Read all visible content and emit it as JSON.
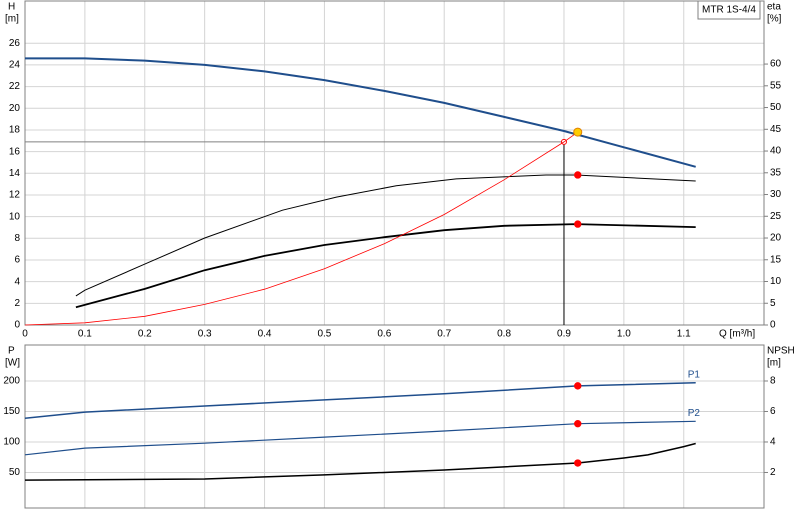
{
  "chart_data": [
    {
      "type": "line",
      "title": "MTR 1S-4/4",
      "xlabel": "Q [m³/h]",
      "ylabel": "H",
      "yunit": "[m]",
      "y2label": "eta",
      "y2unit": "[%]",
      "xlim": [
        0,
        1.234
      ],
      "xticks": [
        0,
        0.1,
        0.2,
        0.3,
        0.4,
        0.5,
        0.6,
        0.7,
        0.8,
        0.9,
        {
          "value": 1,
          "label": "1.0"
        },
        1.1
      ],
      "ylim": [
        0,
        29.9
      ],
      "yticks": [
        0,
        2,
        4,
        6,
        8,
        10,
        12,
        14,
        16,
        18,
        20,
        22,
        24,
        26
      ],
      "y2lim": [
        0,
        74.5
      ],
      "y2ticks": [
        0,
        5,
        10,
        15,
        20,
        25,
        30,
        35,
        40,
        45,
        50,
        55,
        60
      ],
      "grid": true,
      "series": [
        {
          "color": "#1f4e8c",
          "width": 2,
          "x": [
            0,
            0.1,
            0.2,
            0.3,
            0.4,
            0.5,
            0.6,
            0.7,
            0.8,
            0.9,
            1.0,
            1.12
          ],
          "values": [
            24.6,
            24.6,
            24.4,
            24.0,
            23.4,
            22.6,
            21.6,
            20.5,
            19.2,
            17.9,
            16.4,
            14.6
          ]
        },
        {
          "color": "#000000",
          "width": 1,
          "axis": "y2",
          "x": [
            0.085,
            0.1,
            0.2,
            0.3,
            0.43,
            0.52,
            0.62,
            0.72,
            0.87,
            0.92,
            1.12
          ],
          "values": [
            6.7,
            8,
            14,
            20,
            26.4,
            29.4,
            32,
            33.6,
            34.5,
            34.5,
            33.1
          ]
        },
        {
          "color": "#000000",
          "width": 1.8,
          "axis": "y2",
          "x": [
            0.085,
            0.2,
            0.3,
            0.4,
            0.5,
            0.6,
            0.7,
            0.8,
            0.92,
            1.12
          ],
          "values": [
            4.1,
            8.3,
            12.6,
            15.9,
            18.4,
            20.2,
            21.8,
            22.8,
            23.2,
            22.5
          ]
        },
        {
          "color": "#ff0000",
          "width": 0.8,
          "x": [
            0,
            0.1,
            0.2,
            0.3,
            0.4,
            0.5,
            0.6,
            0.7,
            0.8,
            0.9,
            0.923
          ],
          "values": [
            0,
            0.2,
            0.8,
            1.9,
            3.3,
            5.2,
            7.5,
            10.2,
            13.4,
            16.9,
            17.8
          ]
        }
      ],
      "duty_point": {
        "x": 0.9,
        "y": 16.9
      },
      "markers": [
        {
          "x": 0.923,
          "y": 17.8,
          "color": "#ffcc00"
        },
        {
          "x": 0.923,
          "y": 34.5,
          "axis": "y2",
          "color": "#ff0000"
        },
        {
          "x": 0.923,
          "y": 23.2,
          "axis": "y2",
          "color": "#ff0000"
        }
      ]
    },
    {
      "type": "line",
      "ylabel": "P",
      "yunit": "[W]",
      "y2label": "NPSH",
      "y2unit": "[m]",
      "xlim": [
        0,
        1.234
      ],
      "ylim": [
        -8.2,
        259
      ],
      "yticks": [
        50,
        100,
        150,
        200
      ],
      "y2lim": [
        -0.33,
        10.36
      ],
      "y2ticks": [
        2,
        4,
        6,
        8
      ],
      "grid": true,
      "series": [
        {
          "name": "P1",
          "color": "#1f4e8c",
          "width": 1.5,
          "x": [
            0,
            0.1,
            0.3,
            0.5,
            0.7,
            0.923,
            1.12
          ],
          "values": [
            139,
            149,
            159,
            169,
            179,
            192,
            197
          ]
        },
        {
          "name": "P2",
          "color": "#1f4e8c",
          "width": 1.2,
          "x": [
            0,
            0.1,
            0.3,
            0.5,
            0.7,
            0.923,
            1.12
          ],
          "values": [
            79,
            90,
            98,
            108,
            118,
            130,
            134
          ]
        },
        {
          "color": "#000000",
          "width": 1.5,
          "axis": "y2",
          "x": [
            0,
            0.3,
            0.5,
            0.7,
            0.923,
            1.0,
            1.04,
            1.1,
            1.12
          ],
          "values": [
            1.5,
            1.57,
            1.84,
            2.16,
            2.62,
            2.95,
            3.15,
            3.7,
            3.9
          ]
        }
      ],
      "markers": [
        {
          "x": 0.923,
          "y": 192,
          "color": "#ff0000"
        },
        {
          "x": 0.923,
          "y": 130,
          "color": "#ff0000"
        },
        {
          "x": 0.923,
          "y": 2.62,
          "axis": "y2",
          "color": "#ff0000"
        }
      ]
    }
  ]
}
